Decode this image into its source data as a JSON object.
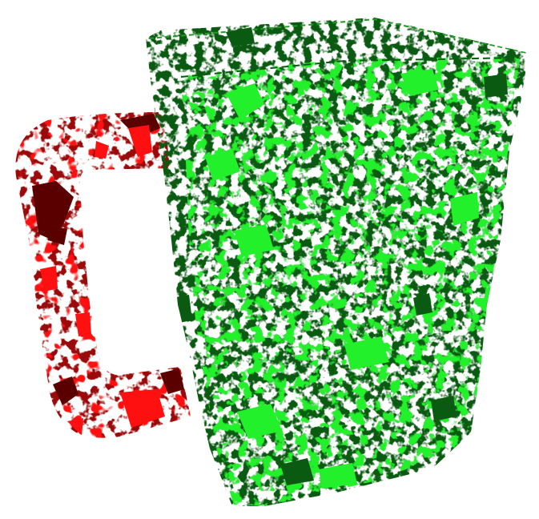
{
  "scene": {
    "background": "#ffffff",
    "subject": "mug-point-cloud",
    "colors": {
      "body_dark": "#0b5a12",
      "body_mid": "#1f9a25",
      "body_bright": "#22f02a",
      "handle_dark": "#5a0000",
      "handle_mid": "#9a0a0a",
      "handle_bright": "#ff1010"
    }
  }
}
